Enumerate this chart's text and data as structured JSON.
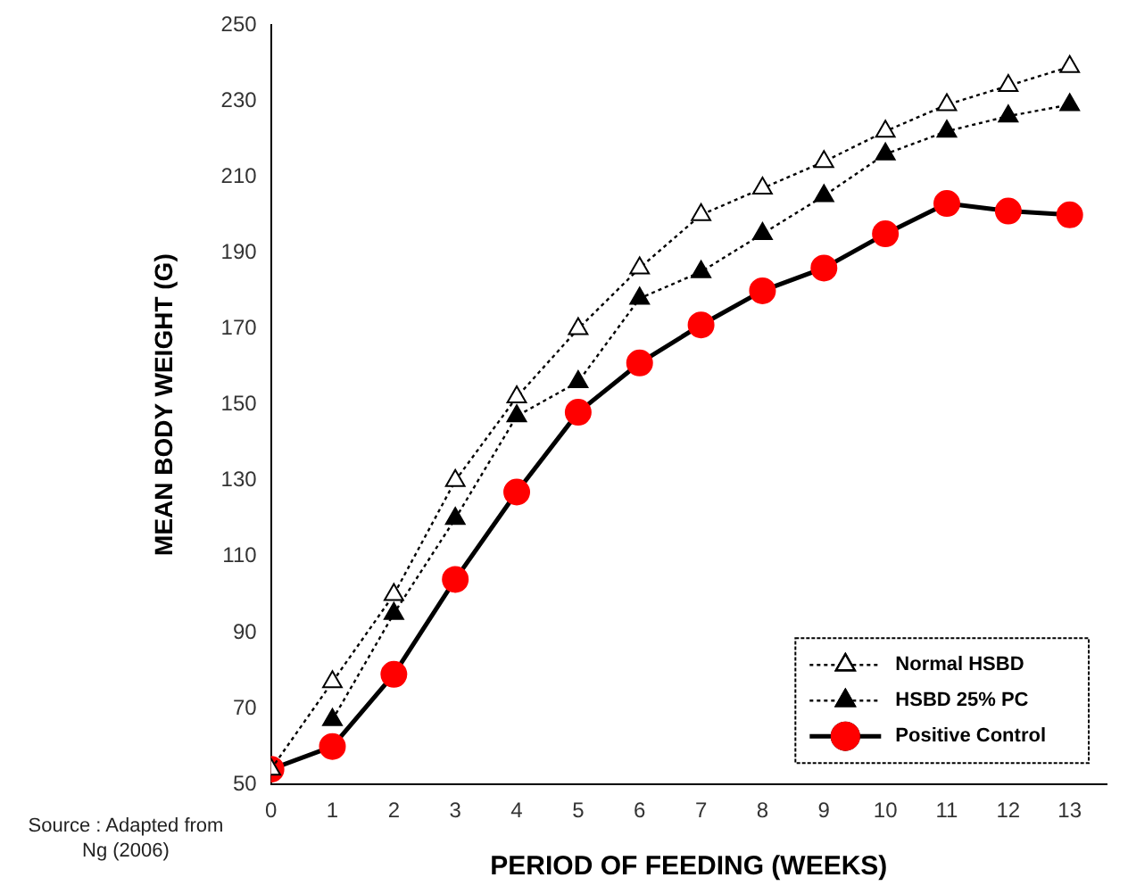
{
  "chart_data": {
    "type": "line",
    "xlabel": "PERIOD OF FEEDING (WEEKS)",
    "ylabel": "MEAN BODY WEIGHT (G)",
    "x": [
      0,
      1,
      2,
      3,
      4,
      5,
      6,
      7,
      8,
      9,
      10,
      11,
      12,
      13
    ],
    "xlim": [
      0,
      13.6
    ],
    "xticks": [
      0,
      1,
      2,
      3,
      4,
      5,
      6,
      7,
      8,
      9,
      10,
      11,
      12,
      13
    ],
    "ylim": [
      50,
      250
    ],
    "yticks": [
      50,
      70,
      90,
      110,
      130,
      150,
      170,
      190,
      210,
      230,
      250
    ],
    "grid": false,
    "legend": "bottom right",
    "annotations": [
      "Source : Adapted from Ng (2006)"
    ],
    "series": [
      {
        "name": "Normal HSBD",
        "color": "#ffffff",
        "marker": "triangle",
        "line_style": "dotted",
        "values": [
          54,
          77,
          100,
          130,
          152,
          170,
          186,
          200,
          207,
          214,
          222,
          229,
          234,
          239
        ]
      },
      {
        "name": "HSBD 25% PC",
        "color": "#000000",
        "marker": "triangle",
        "line_style": "dotted",
        "values": [
          null,
          67,
          95,
          120,
          147,
          156,
          178,
          185,
          195,
          205,
          216,
          222,
          226,
          229
        ]
      },
      {
        "name": "Positive Control",
        "color": "#ff0000",
        "marker": "circle",
        "line_style": "solid",
        "values": [
          54,
          60,
          79,
          104,
          127,
          148,
          161,
          171,
          180,
          186,
          195,
          203,
          201,
          200
        ]
      }
    ]
  }
}
